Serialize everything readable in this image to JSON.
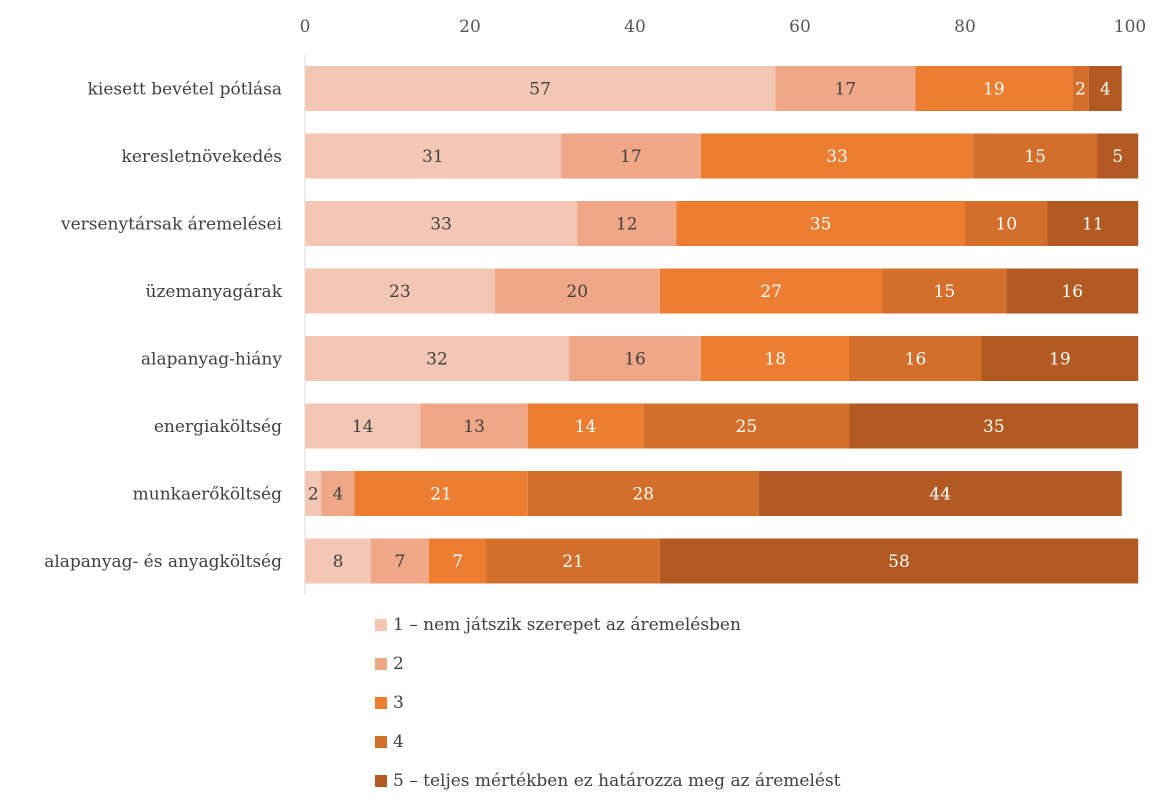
{
  "chart_data": {
    "type": "bar",
    "orientation": "horizontal",
    "stacked": true,
    "xlim": [
      0,
      100
    ],
    "x_ticks": [
      "0",
      "20",
      "40",
      "60",
      "80",
      "100"
    ],
    "x_axis_position": "top",
    "grid": false,
    "legend_position": "bottom",
    "categories": [
      "kiesett bevétel pótlása",
      "keresletnövekedés",
      "versenytársak áremelései",
      "üzemanyagárak",
      "alapanyag-hiány",
      "energiaköltség",
      "munkaerőköltség",
      "alapanyag- és anyagköltség"
    ],
    "series": [
      {
        "name": "1 – nem játszik szerepet az áremelésben",
        "color": "#F4C7B4",
        "label_color": "#404040",
        "values": [
          57,
          31,
          33,
          23,
          32,
          14,
          2,
          8
        ]
      },
      {
        "name": "2",
        "color": "#F0A787",
        "label_color": "#404040",
        "values": [
          17,
          17,
          12,
          20,
          16,
          13,
          4,
          7
        ]
      },
      {
        "name": "3",
        "color": "#ED7D31",
        "label_color": "#ffffff",
        "values": [
          19,
          33,
          35,
          27,
          18,
          14,
          21,
          7
        ]
      },
      {
        "name": "4",
        "color": "#D46E2B",
        "label_color": "#ffffff",
        "values": [
          2,
          15,
          10,
          15,
          16,
          25,
          28,
          21
        ]
      },
      {
        "name": "5 – teljes mértékben ez határozza meg az áremelést",
        "color": "#B35A22",
        "label_color": "#ffffff",
        "values": [
          4,
          5,
          11,
          16,
          19,
          35,
          44,
          58
        ]
      }
    ]
  }
}
